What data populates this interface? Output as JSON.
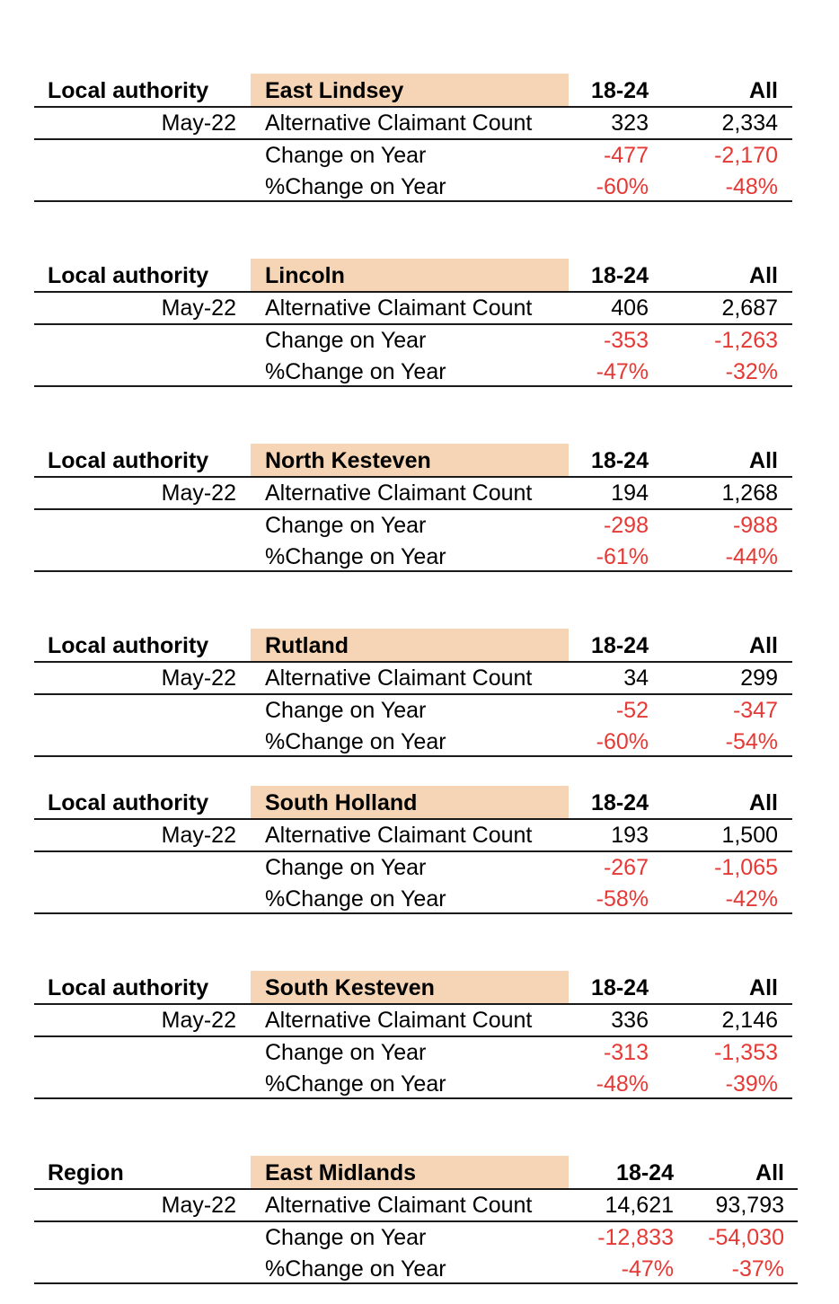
{
  "highlight_color": "#f5d5b5",
  "negative_color": "#e53935",
  "header_cols": {
    "age": "18-24",
    "all": "All"
  },
  "blocks": [
    {
      "label": "Local authority",
      "area": "East Lindsey",
      "period": "May-22",
      "rows": [
        {
          "name": "Alternative Claimant Count",
          "age": "323",
          "all": "2,334"
        },
        {
          "name": "Change on Year",
          "age": "-477",
          "all": "-2,170"
        },
        {
          "name": "%Change on Year",
          "age": "-60%",
          "all": "-48%"
        }
      ]
    },
    {
      "label": "Local authority",
      "area": "Lincoln",
      "period": "May-22",
      "rows": [
        {
          "name": "Alternative Claimant Count",
          "age": "406",
          "all": "2,687"
        },
        {
          "name": "Change on Year",
          "age": "-353",
          "all": "-1,263"
        },
        {
          "name": "%Change on Year",
          "age": "-47%",
          "all": "-32%"
        }
      ]
    },
    {
      "label": "Local authority",
      "area": "North Kesteven",
      "period": "May-22",
      "rows": [
        {
          "name": "Alternative Claimant Count",
          "age": "194",
          "all": "1,268"
        },
        {
          "name": "Change on Year",
          "age": "-298",
          "all": "-988"
        },
        {
          "name": "%Change on Year",
          "age": "-61%",
          "all": "-44%"
        }
      ]
    },
    {
      "label": "Local authority",
      "area": "Rutland",
      "period": "May-22",
      "rows": [
        {
          "name": "Alternative Claimant Count",
          "age": "34",
          "all": "299"
        },
        {
          "name": "Change on Year",
          "age": "-52",
          "all": "-347"
        },
        {
          "name": "%Change on Year",
          "age": "-60%",
          "all": "-54%"
        }
      ]
    },
    {
      "label": "Local authority",
      "area": "South Holland",
      "period": "May-22",
      "rows": [
        {
          "name": "Alternative Claimant Count",
          "age": "193",
          "all": "1,500"
        },
        {
          "name": "Change on Year",
          "age": "-267",
          "all": "-1,065"
        },
        {
          "name": "%Change on Year",
          "age": "-58%",
          "all": "-42%"
        }
      ]
    },
    {
      "label": "Local authority",
      "area": "South Kesteven",
      "period": "May-22",
      "rows": [
        {
          "name": "Alternative Claimant Count",
          "age": "336",
          "all": "2,146"
        },
        {
          "name": "Change on Year",
          "age": "-313",
          "all": "-1,353"
        },
        {
          "name": "%Change on Year",
          "age": "-48%",
          "all": "-39%"
        }
      ]
    },
    {
      "label": "Region",
      "area": "East Midlands",
      "period": "May-22",
      "rows": [
        {
          "name": "Alternative Claimant Count",
          "age": "14,621",
          "all": "93,793"
        },
        {
          "name": "Change on Year",
          "age": "-12,833",
          "all": "-54,030"
        },
        {
          "name": "%Change on Year",
          "age": "-47%",
          "all": "-37%"
        }
      ]
    }
  ]
}
